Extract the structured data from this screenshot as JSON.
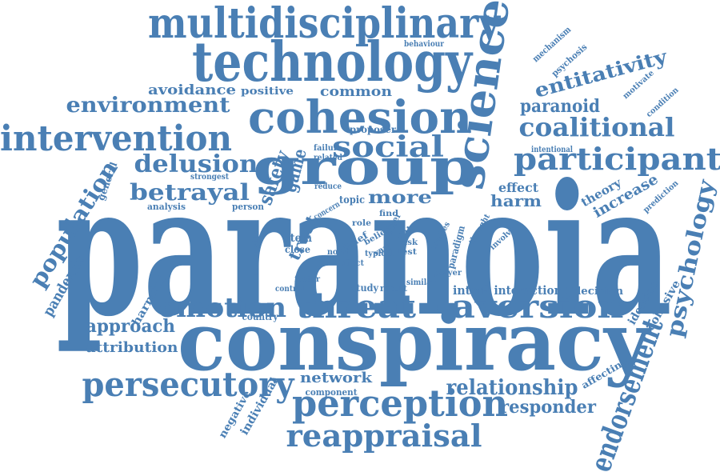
{
  "colors": {
    "word": "#4a7fb4",
    "background": "#ffffff"
  },
  "words": {
    "paranoia": "paranoia",
    "conspiracy": "conspiracy",
    "technology": "technology",
    "multidisciplinary": "multidisciplinary",
    "cohesion": "cohesion",
    "group": "group",
    "science": "science",
    "threat": "threat",
    "aversion": "aversion",
    "perception": "perception",
    "persecutory": "persecutory",
    "reappraisal": "reappraisal",
    "intervention": "intervention",
    "social": "social",
    "participant": "participant",
    "coalitional": "coalitional",
    "emotion": "emotion",
    "endorsement": "endorsement",
    "psychology": "psychology",
    "relationship": "relationship",
    "delusion": "delusion",
    "betrayal": "betrayal",
    "environment": "environment",
    "entitativity": "entitativity",
    "paranoid": "paranoid",
    "population": "population",
    "responder": "responder",
    "safety": "safety",
    "game": "game",
    "more": "more",
    "harm": "harm",
    "effect": "effect",
    "avoidance": "avoidance",
    "positive": "positive",
    "common": "common",
    "approach": "approach",
    "attribution": "attribution",
    "network": "network",
    "trust": "trust",
    "pandemic": "pandemic",
    "harmful": "harmful",
    "increase": "increase",
    "theory": "theory",
    "cohesive": "cohesive",
    "ideation": "ideation",
    "individual": "individual",
    "negative": "negative",
    "affecting": "affecting",
    "interaction": "interaction",
    "decision": "decision",
    "intent": "intent",
    "study": "study",
    "result": "result",
    "country": "country",
    "component": "component",
    "proposer": "proposer",
    "topic": "topic",
    "item": "item",
    "close": "close",
    "general": "general",
    "analysis": "analysis",
    "person": "person",
    "concern": "concern",
    "reduce": "reduce",
    "strongest": "strongest",
    "failure": "failure",
    "related": "related",
    "intentional": "intentional",
    "behaviour": "behaviour",
    "mechanism": "mechanism",
    "psychosis": "psychosis",
    "motivate": "motivate",
    "condition": "condition",
    "prediction": "prediction",
    "involve": "involve",
    "thought": "thought",
    "studies": "studies",
    "paradigm": "paradigm",
    "player": "player",
    "similar": "similar",
    "control": "control",
    "factor": "factor",
    "reconstrual": "reconstrual",
    "node": "node",
    "brief": "brief",
    "belief": "belief",
    "typical": "typical",
    "other": "other",
    "role": "role",
    "self": "self",
    "risk": "risk",
    "test": "test",
    "find": "find",
    "affect": "affect",
    "vary": "vary"
  }
}
